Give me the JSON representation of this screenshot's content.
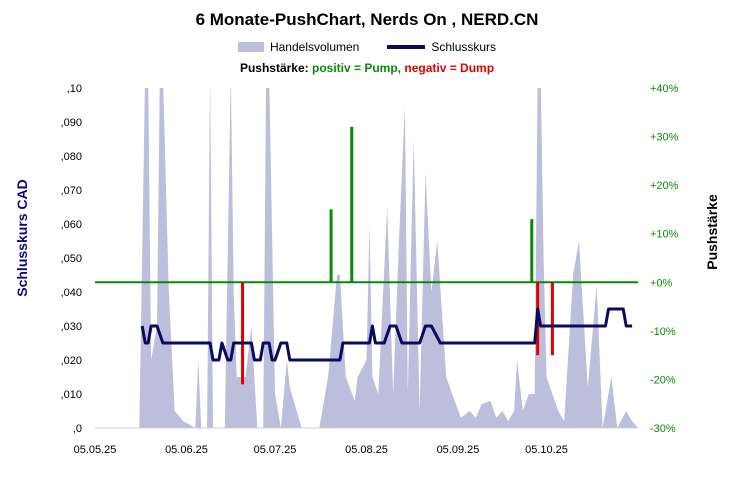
{
  "title": "6 Monate-PushChart,  Nerds On , NERD.CN",
  "legend": {
    "volume": "Handelsvolumen",
    "close": "Schlusskurs"
  },
  "subtitle": {
    "prefix": "Pushstärke:",
    "positive": "positiv = Pump,",
    "negative": "negativ = Dump"
  },
  "y_left_label": "Schlusskurs CAD",
  "y_right_label": "Pushstärke",
  "colors": {
    "volume": "#bdbddc",
    "close": "#0b0b5e",
    "pump": "#0a8a0a",
    "dump": "#e00000",
    "zero_line": "#0a8a0a"
  },
  "chart_data": {
    "type": "line",
    "x_ticks": [
      "05.05.25",
      "05.06.25",
      "05.07.25",
      "05.08.25",
      "05.09.25",
      "05.10.25"
    ],
    "x_range": [
      "2025-05-05",
      "2025-11-05"
    ],
    "y_left": {
      "range": [
        0,
        0.1
      ],
      "ticks": [
        ",0",
        ",010",
        ",020",
        ",030",
        ",040",
        ",050",
        ",060",
        ",070",
        ",080",
        ",090",
        ",10"
      ]
    },
    "y_right": {
      "range": [
        -30,
        40
      ],
      "ticks": [
        "-30%",
        "-20%",
        "-10%",
        "+0%",
        "+10%",
        "+20%",
        "+30%",
        "+40%"
      ]
    },
    "close_series": [
      [
        "2025-05-21",
        0.03
      ],
      [
        "2025-05-22",
        0.025
      ],
      [
        "2025-05-23",
        0.025
      ],
      [
        "2025-05-24",
        0.03
      ],
      [
        "2025-05-26",
        0.03
      ],
      [
        "2025-05-28",
        0.025
      ],
      [
        "2025-06-03",
        0.025
      ],
      [
        "2025-06-13",
        0.025
      ],
      [
        "2025-06-14",
        0.02
      ],
      [
        "2025-06-16",
        0.02
      ],
      [
        "2025-06-17",
        0.025
      ],
      [
        "2025-06-19",
        0.02
      ],
      [
        "2025-06-20",
        0.02
      ],
      [
        "2025-06-21",
        0.025
      ],
      [
        "2025-06-27",
        0.025
      ],
      [
        "2025-06-28",
        0.02
      ],
      [
        "2025-06-30",
        0.02
      ],
      [
        "2025-07-01",
        0.025
      ],
      [
        "2025-07-03",
        0.025
      ],
      [
        "2025-07-04",
        0.02
      ],
      [
        "2025-07-05",
        0.02
      ],
      [
        "2025-07-07",
        0.025
      ],
      [
        "2025-07-09",
        0.025
      ],
      [
        "2025-07-10",
        0.02
      ],
      [
        "2025-07-13",
        0.02
      ],
      [
        "2025-07-16",
        0.02
      ],
      [
        "2025-07-17",
        0.02
      ],
      [
        "2025-07-18",
        0.02
      ],
      [
        "2025-07-27",
        0.02
      ],
      [
        "2025-07-28",
        0.025
      ],
      [
        "2025-08-06",
        0.025
      ],
      [
        "2025-08-07",
        0.03
      ],
      [
        "2025-08-08",
        0.025
      ],
      [
        "2025-08-09",
        0.025
      ],
      [
        "2025-08-11",
        0.025
      ],
      [
        "2025-08-13",
        0.03
      ],
      [
        "2025-08-15",
        0.03
      ],
      [
        "2025-08-17",
        0.025
      ],
      [
        "2025-08-23",
        0.025
      ],
      [
        "2025-08-25",
        0.03
      ],
      [
        "2025-08-27",
        0.03
      ],
      [
        "2025-08-30",
        0.025
      ],
      [
        "2025-10-01",
        0.025
      ],
      [
        "2025-10-02",
        0.035
      ],
      [
        "2025-10-03",
        0.03
      ],
      [
        "2025-10-05",
        0.03
      ],
      [
        "2025-10-13",
        0.03
      ],
      [
        "2025-10-25",
        0.03
      ],
      [
        "2025-10-26",
        0.035
      ],
      [
        "2025-10-31",
        0.035
      ],
      [
        "2025-11-01",
        0.03
      ],
      [
        "2025-11-03",
        0.03
      ]
    ],
    "volume_series": [
      [
        "2025-05-16",
        0
      ],
      [
        "2025-05-20",
        0
      ],
      [
        "2025-05-22",
        0.105
      ],
      [
        "2025-05-23",
        0.105
      ],
      [
        "2025-05-24",
        0.02
      ],
      [
        "2025-05-26",
        0.03
      ],
      [
        "2025-05-27",
        0.105
      ],
      [
        "2025-05-28",
        0.105
      ],
      [
        "2025-05-30",
        0.04
      ],
      [
        "2025-06-01",
        0.005
      ],
      [
        "2025-06-04",
        0.002
      ],
      [
        "2025-06-08",
        0
      ],
      [
        "2025-06-09",
        0.02
      ],
      [
        "2025-06-10",
        0
      ],
      [
        "2025-06-12",
        0
      ],
      [
        "2025-06-13",
        0.105
      ],
      [
        "2025-06-14",
        0
      ],
      [
        "2025-06-18",
        0
      ],
      [
        "2025-06-20",
        0.105
      ],
      [
        "2025-06-21",
        0.04
      ],
      [
        "2025-06-22",
        0.015
      ],
      [
        "2025-06-25",
        0.015
      ],
      [
        "2025-06-27",
        0.03
      ],
      [
        "2025-06-29",
        0
      ],
      [
        "2025-07-01",
        0
      ],
      [
        "2025-07-02",
        0.105
      ],
      [
        "2025-07-03",
        0.105
      ],
      [
        "2025-07-05",
        0.01
      ],
      [
        "2025-07-07",
        0
      ],
      [
        "2025-07-09",
        0.02
      ],
      [
        "2025-07-10",
        0.012
      ],
      [
        "2025-07-14",
        0
      ],
      [
        "2025-07-20",
        0
      ],
      [
        "2025-07-23",
        0.015
      ],
      [
        "2025-07-26",
        0.045
      ],
      [
        "2025-07-27",
        0.045
      ],
      [
        "2025-07-29",
        0.015
      ],
      [
        "2025-08-01",
        0.008
      ],
      [
        "2025-08-02",
        0.015
      ],
      [
        "2025-08-05",
        0.02
      ],
      [
        "2025-08-06",
        0.06
      ],
      [
        "2025-08-07",
        0.015
      ],
      [
        "2025-08-09",
        0.01
      ],
      [
        "2025-08-12",
        0.065
      ],
      [
        "2025-08-14",
        0.01
      ],
      [
        "2025-08-16",
        0.055
      ],
      [
        "2025-08-18",
        0.095
      ],
      [
        "2025-08-19",
        0.01
      ],
      [
        "2025-08-21",
        0.085
      ],
      [
        "2025-08-23",
        0.005
      ],
      [
        "2025-08-25",
        0.075
      ],
      [
        "2025-08-27",
        0.04
      ],
      [
        "2025-08-29",
        0.055
      ],
      [
        "2025-09-01",
        0.015
      ],
      [
        "2025-09-03",
        0.01
      ],
      [
        "2025-09-06",
        0.003
      ],
      [
        "2025-09-09",
        0.005
      ],
      [
        "2025-09-11",
        0.003
      ],
      [
        "2025-09-13",
        0.007
      ],
      [
        "2025-09-16",
        0.008
      ],
      [
        "2025-09-18",
        0.003
      ],
      [
        "2025-09-20",
        0.005
      ],
      [
        "2025-09-22",
        0.002
      ],
      [
        "2025-09-24",
        0.005
      ],
      [
        "2025-09-25",
        0.02
      ],
      [
        "2025-09-27",
        0.005
      ],
      [
        "2025-09-29",
        0.01
      ],
      [
        "2025-10-01",
        0.01
      ],
      [
        "2025-10-02",
        0.105
      ],
      [
        "2025-10-03",
        0.105
      ],
      [
        "2025-10-04",
        0.05
      ],
      [
        "2025-10-05",
        0.015
      ],
      [
        "2025-10-07",
        0.01
      ],
      [
        "2025-10-09",
        0.005
      ],
      [
        "2025-10-11",
        0.002
      ],
      [
        "2025-10-14",
        0.045
      ],
      [
        "2025-10-16",
        0.055
      ],
      [
        "2025-10-19",
        0.012
      ],
      [
        "2025-10-22",
        0.042
      ],
      [
        "2025-10-24",
        0
      ],
      [
        "2025-10-27",
        0.015
      ],
      [
        "2025-10-29",
        0
      ],
      [
        "2025-11-01",
        0.005
      ],
      [
        "2025-11-03",
        0.002
      ],
      [
        "2025-11-05",
        0
      ]
    ],
    "push_bars": [
      [
        "2025-06-24",
        -21
      ],
      [
        "2025-07-24",
        15
      ],
      [
        "2025-07-31",
        32
      ],
      [
        "2025-09-30",
        13
      ],
      [
        "2025-10-02",
        -15
      ],
      [
        "2025-10-07",
        -15
      ]
    ]
  }
}
